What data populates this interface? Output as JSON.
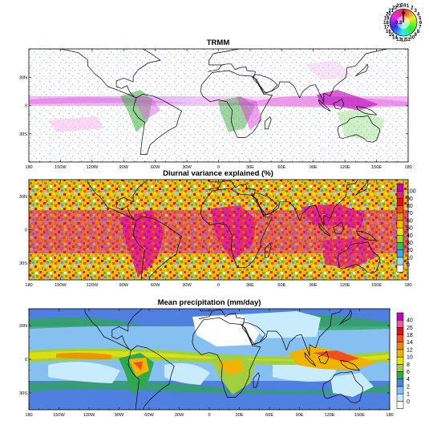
{
  "panels": [
    {
      "id": "phase",
      "title": "TRMM"
    },
    {
      "id": "variance",
      "title": "Diurnal variance explained (%)"
    },
    {
      "id": "precip",
      "title": "Mean precipitation (mm/day)"
    }
  ],
  "x_ticks": [
    "180",
    "150W",
    "120W",
    "90W",
    "60W",
    "30W",
    "0",
    "30E",
    "60E",
    "90E",
    "120E",
    "150E",
    "180"
  ],
  "y_ticks": [
    "30N",
    "0",
    "30S"
  ],
  "variance_colorbar": {
    "labels": [
      "100",
      "90",
      "80",
      "70",
      "60",
      "50",
      "40",
      "30",
      "20",
      "10",
      "0"
    ],
    "colors": [
      "#c000c0",
      "#e02080",
      "#e01010",
      "#e85010",
      "#f08a00",
      "#f0c000",
      "#e8e800",
      "#a0dc20",
      "#2fbf6f",
      "#3fa8e0",
      "#9ad9f2",
      "#ffffff"
    ]
  },
  "precip_colorbar": {
    "labels": [
      "40",
      "25",
      "18",
      "14",
      "12",
      "10",
      "8",
      "6",
      "4",
      "2",
      "1",
      "0"
    ],
    "colors": [
      "#c000c0",
      "#e060a0",
      "#e01010",
      "#f05020",
      "#f08a00",
      "#f0b400",
      "#f0e000",
      "#a0d040",
      "#2fa84f",
      "#4f80e0",
      "#86c0f0",
      "#c8ecfc",
      "#ffffff"
    ]
  },
  "phase_wheel": {
    "hours": [
      "1",
      "2",
      "3",
      "4",
      "5",
      "6",
      "7",
      "8",
      "9",
      "10",
      "11",
      "12",
      "13",
      "14",
      "15",
      "16",
      "17",
      "18",
      "19",
      "20",
      "21",
      "22",
      "23",
      "24"
    ],
    "center_label": "0.3"
  }
}
